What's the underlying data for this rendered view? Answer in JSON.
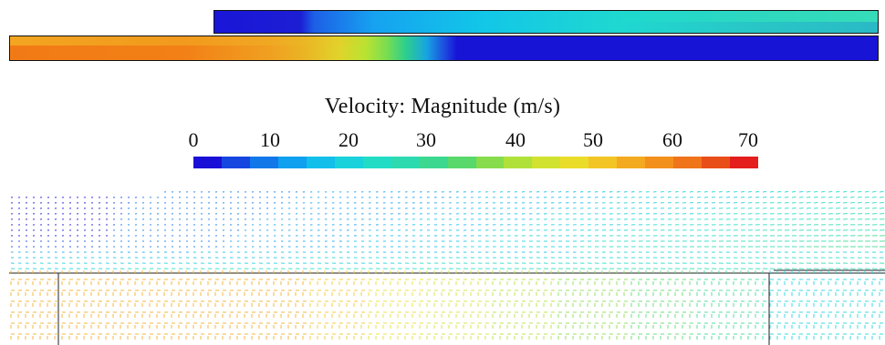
{
  "legend": {
    "title": "Velocity: Magnitude (m/s)",
    "ticks": [
      "0",
      "10",
      "20",
      "30",
      "40",
      "50",
      "60",
      "70"
    ],
    "range": [
      0,
      70
    ],
    "colors": [
      "#1a0fd6",
      "#1646e0",
      "#1278ea",
      "#0fa0ef",
      "#12bfea",
      "#19d2dc",
      "#22dcc6",
      "#2ddab0",
      "#3cd88f",
      "#59d86b",
      "#86dc4c",
      "#b0e13a",
      "#d2e230",
      "#eadd2a",
      "#f2c524",
      "#f3aa20",
      "#f3901c",
      "#f07419",
      "#ea4e18",
      "#e41d1d"
    ]
  },
  "colorbar_direction": "horizontal"
}
